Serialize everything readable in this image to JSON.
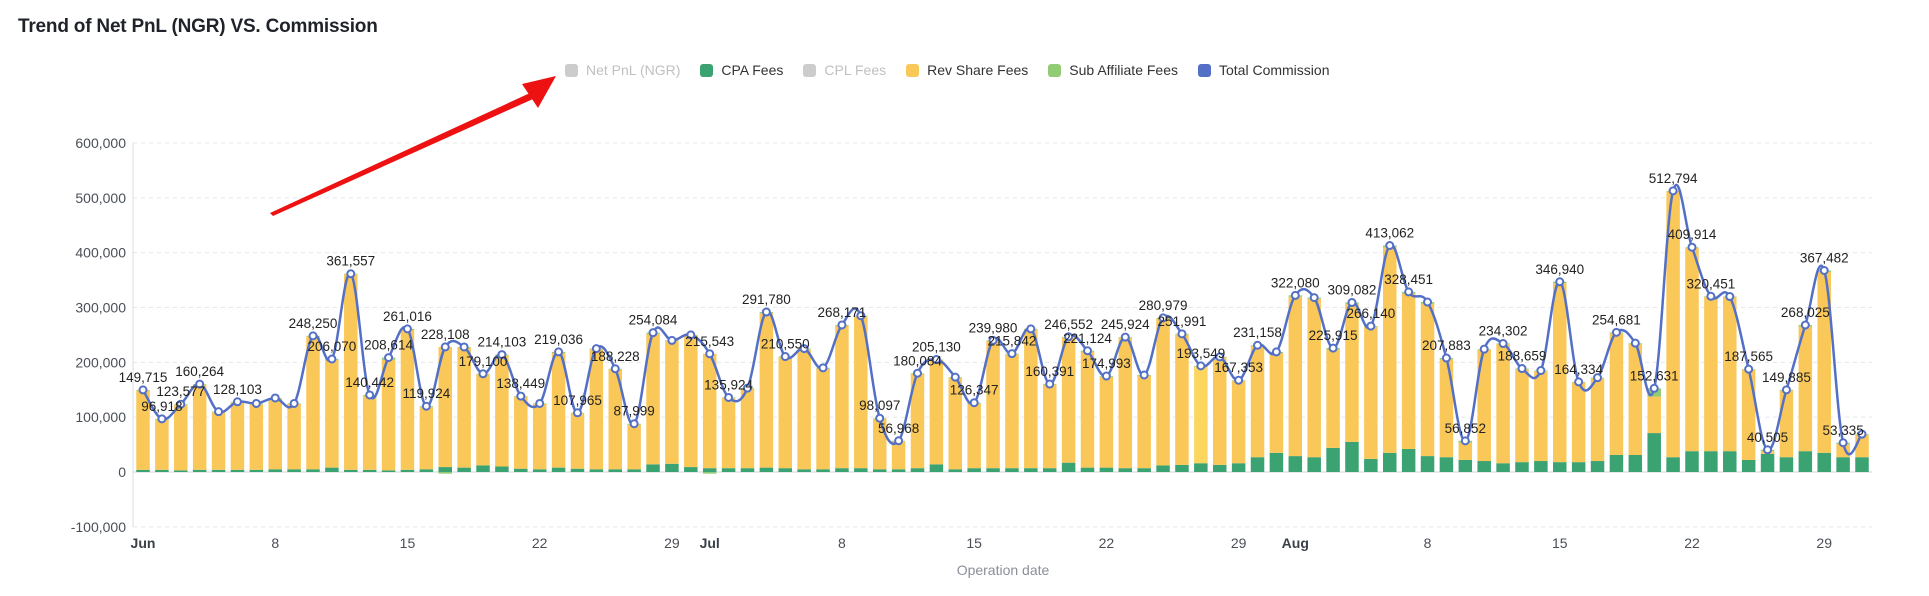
{
  "chart_data": {
    "type": "bar",
    "title": "Trend of Net PnL (NGR) VS. Commission",
    "xlabel": "Operation date",
    "ylabel": "",
    "ylim": [
      -100000,
      600000
    ],
    "yticks": [
      -100000,
      0,
      100000,
      200000,
      300000,
      400000,
      500000,
      600000
    ],
    "ytick_labels": [
      "-100,000",
      "0",
      "100,000",
      "200,000",
      "300,000",
      "400,000",
      "500,000",
      "600,000"
    ],
    "grid": true,
    "legend_position": "top-center",
    "x_start": "Jun 1",
    "x_end": "Aug 31",
    "xticks": [
      {
        "index": 0,
        "label": "Jun",
        "month": true
      },
      {
        "index": 7,
        "label": "8",
        "month": false
      },
      {
        "index": 14,
        "label": "15",
        "month": false
      },
      {
        "index": 21,
        "label": "22",
        "month": false
      },
      {
        "index": 28,
        "label": "29",
        "month": false
      },
      {
        "index": 30,
        "label": "Jul",
        "month": true
      },
      {
        "index": 37,
        "label": "8",
        "month": false
      },
      {
        "index": 44,
        "label": "15",
        "month": false
      },
      {
        "index": 51,
        "label": "22",
        "month": false
      },
      {
        "index": 58,
        "label": "29",
        "month": false
      },
      {
        "index": 61,
        "label": "Aug",
        "month": true
      },
      {
        "index": 68,
        "label": "8",
        "month": false
      },
      {
        "index": 75,
        "label": "15",
        "month": false
      },
      {
        "index": 82,
        "label": "22",
        "month": false
      },
      {
        "index": 89,
        "label": "29",
        "month": false
      }
    ],
    "legend": [
      {
        "name": "Net PnL (NGR)",
        "color": "#cccccc",
        "enabled": false
      },
      {
        "name": "CPA Fees",
        "color": "#3ba272",
        "enabled": true
      },
      {
        "name": "CPL Fees",
        "color": "#cccccc",
        "enabled": false
      },
      {
        "name": "Rev Share Fees",
        "color": "#fac858",
        "enabled": true
      },
      {
        "name": "Sub Affiliate Fees",
        "color": "#91cc75",
        "enabled": true
      },
      {
        "name": "Total Commission",
        "color": "#5470c6",
        "enabled": true
      }
    ],
    "highlight_index": 56,
    "series": [
      {
        "name": "CPA Fees",
        "type": "bar",
        "stack": "fees",
        "values": [
          4000,
          4000,
          3000,
          4000,
          4000,
          4000,
          4000,
          5000,
          5000,
          5000,
          8000,
          4000,
          4000,
          3000,
          4000,
          5000,
          9000,
          8000,
          12000,
          10000,
          6000,
          5000,
          8000,
          6000,
          5000,
          5000,
          5000,
          14000,
          15000,
          9000,
          7000,
          7000,
          7000,
          8000,
          7000,
          5000,
          5000,
          7000,
          7000,
          5000,
          5000,
          7000,
          14000,
          5000,
          7000,
          7000,
          7000,
          7000,
          7000,
          17000,
          8000,
          8000,
          7000,
          7000,
          12000,
          13000,
          16000,
          13000,
          16000,
          27000,
          35000,
          29000,
          27000,
          44000,
          55000,
          24000,
          35000,
          42000,
          29000,
          27000,
          22000,
          20000,
          16000,
          18000,
          20000,
          18000,
          18000,
          20000,
          31000,
          31000,
          71000,
          27000,
          38000,
          38000,
          38000,
          22000,
          33000,
          27000,
          38000,
          35000,
          27000,
          27000
        ]
      },
      {
        "name": "Sub Affiliate Fees",
        "type": "bar",
        "stack": "fees",
        "values": [
          1000,
          1000,
          1000,
          1000,
          1000,
          1000,
          1000,
          1000,
          1000,
          1000,
          1500,
          1000,
          1000,
          4000,
          2000,
          1500,
          -3000,
          1000,
          1000,
          1000,
          1000,
          1000,
          2000,
          1000,
          1000,
          1000,
          1500,
          2000,
          1000,
          1000,
          -3000,
          1000,
          1500,
          2000,
          1500,
          1000,
          1500,
          1000,
          1000,
          1000,
          1000,
          1000,
          1000,
          1000,
          1500,
          1000,
          1000,
          1000,
          1000,
          1000,
          2000,
          1500,
          1000,
          1000,
          1000,
          1000,
          1000,
          1000,
          1000,
          1500,
          2000,
          2500,
          2000,
          2500,
          2500,
          1500,
          3000,
          3000,
          3000,
          2500,
          3000,
          1000,
          1000,
          1000,
          1000,
          2500,
          1000,
          1000,
          1000,
          1000,
          15000,
          1000,
          1000,
          1000,
          1000,
          1000,
          2500,
          1500,
          2500,
          2500,
          2500,
          1000
        ]
      },
      {
        "name": "Rev Share Fees",
        "type": "bar",
        "stack": "fees",
        "derived": "total - cpa - sub_affiliate"
      },
      {
        "name": "Total Commission",
        "type": "line",
        "smooth": true,
        "values": [
          149715,
          96918,
          123577,
          160264,
          110000,
          128103,
          125000,
          135000,
          125000,
          248250,
          206070,
          361557,
          140442,
          208614,
          261016,
          119924,
          228108,
          228000,
          179100,
          214103,
          138449,
          125000,
          219036,
          107965,
          225000,
          188228,
          87999,
          254084,
          240000,
          250000,
          215543,
          135924,
          153000,
          291780,
          210550,
          225000,
          190000,
          268171,
          285000,
          98097,
          56968,
          180084,
          205130,
          173000,
          126347,
          239980,
          215842,
          261000,
          160391,
          246552,
          221124,
          174993,
          245924,
          177000,
          280979,
          251991,
          193549,
          210000,
          167353,
          231158,
          219000,
          322080,
          318000,
          225915,
          309082,
          266140,
          413062,
          328451,
          310000,
          207883,
          56852,
          224000,
          234302,
          188659,
          185000,
          346940,
          164334,
          172000,
          254681,
          235000,
          152631,
          512794,
          409914,
          320451,
          320000,
          187565,
          40505,
          149885,
          268025,
          367482,
          53335,
          69000
        ],
        "labels": [
          {
            "index": 0,
            "text": "149,715"
          },
          {
            "index": 1,
            "text": "96,918"
          },
          {
            "index": 2,
            "text": "123,577"
          },
          {
            "index": 3,
            "text": "160,264"
          },
          {
            "index": 5,
            "text": "128,103"
          },
          {
            "index": 9,
            "text": "248,250"
          },
          {
            "index": 10,
            "text": "206,070"
          },
          {
            "index": 11,
            "text": "361,557"
          },
          {
            "index": 12,
            "text": "140,442"
          },
          {
            "index": 13,
            "text": "208,614"
          },
          {
            "index": 14,
            "text": "261,016"
          },
          {
            "index": 15,
            "text": "119,924"
          },
          {
            "index": 16,
            "text": "228,108"
          },
          {
            "index": 18,
            "text": "179,100"
          },
          {
            "index": 19,
            "text": "214,103"
          },
          {
            "index": 20,
            "text": "138,449"
          },
          {
            "index": 22,
            "text": "219,036"
          },
          {
            "index": 23,
            "text": "107,965"
          },
          {
            "index": 25,
            "text": "188,228"
          },
          {
            "index": 26,
            "text": "87,999"
          },
          {
            "index": 27,
            "text": "254,084"
          },
          {
            "index": 30,
            "text": "215,543"
          },
          {
            "index": 31,
            "text": "135,924"
          },
          {
            "index": 33,
            "text": "291,780"
          },
          {
            "index": 34,
            "text": "210,550"
          },
          {
            "index": 37,
            "text": "268,171"
          },
          {
            "index": 39,
            "text": "98,097"
          },
          {
            "index": 40,
            "text": "56,968"
          },
          {
            "index": 41,
            "text": "180,084"
          },
          {
            "index": 42,
            "text": "205,130"
          },
          {
            "index": 44,
            "text": "126,347"
          },
          {
            "index": 45,
            "text": "239,980"
          },
          {
            "index": 46,
            "text": "215,842"
          },
          {
            "index": 48,
            "text": "160,391"
          },
          {
            "index": 49,
            "text": "246,552"
          },
          {
            "index": 50,
            "text": "221,124"
          },
          {
            "index": 51,
            "text": "174,993"
          },
          {
            "index": 52,
            "text": "245,924"
          },
          {
            "index": 54,
            "text": "280,979"
          },
          {
            "index": 55,
            "text": "251,991"
          },
          {
            "index": 56,
            "text": "193,549"
          },
          {
            "index": 58,
            "text": "167,353"
          },
          {
            "index": 59,
            "text": "231,158"
          },
          {
            "index": 61,
            "text": "322,080"
          },
          {
            "index": 63,
            "text": "225,915"
          },
          {
            "index": 64,
            "text": "309,082"
          },
          {
            "index": 65,
            "text": "266,140"
          },
          {
            "index": 66,
            "text": "413,062"
          },
          {
            "index": 67,
            "text": "328,451"
          },
          {
            "index": 69,
            "text": "207,883"
          },
          {
            "index": 70,
            "text": "56,852"
          },
          {
            "index": 72,
            "text": "234,302"
          },
          {
            "index": 73,
            "text": "188,659"
          },
          {
            "index": 75,
            "text": "346,940"
          },
          {
            "index": 76,
            "text": "164,334"
          },
          {
            "index": 78,
            "text": "254,681"
          },
          {
            "index": 80,
            "text": "152,631"
          },
          {
            "index": 81,
            "text": "512,794"
          },
          {
            "index": 82,
            "text": "409,914"
          },
          {
            "index": 83,
            "text": "320,451"
          },
          {
            "index": 85,
            "text": "187,565"
          },
          {
            "index": 86,
            "text": "40,505"
          },
          {
            "index": 87,
            "text": "149,885"
          },
          {
            "index": 88,
            "text": "268,025"
          },
          {
            "index": 89,
            "text": "367,482"
          },
          {
            "index": 90,
            "text": "53,335"
          }
        ]
      }
    ]
  },
  "annotation": {
    "type": "arrow",
    "color": "#ee1111",
    "points_to": "legend Net PnL (NGR)"
  }
}
